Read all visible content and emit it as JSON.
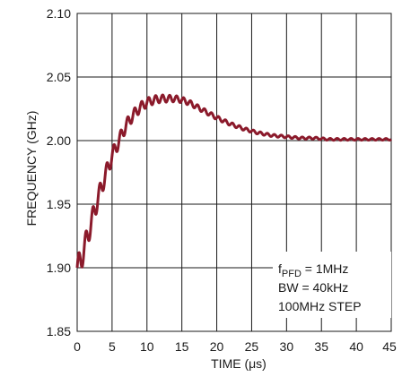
{
  "chart_data": {
    "type": "line",
    "xlabel": "TIME (μs)",
    "ylabel": "FREQUENCY (GHz)",
    "xlim": [
      0,
      45
    ],
    "ylim": [
      1.85,
      2.1
    ],
    "x_ticks": [
      "0",
      "5",
      "10",
      "15",
      "20",
      "25",
      "30",
      "35",
      "40",
      "45"
    ],
    "y_ticks": [
      "1.85",
      "1.90",
      "1.95",
      "2.00",
      "2.05",
      "2.10"
    ],
    "grid": true,
    "line_color": "#8b1a2b",
    "annotation": {
      "line1_main": "f",
      "line1_sub": "PFD",
      "line1_rest": " = 1MHz",
      "line2": "BW = 40kHz",
      "line3": "100MHz STEP"
    },
    "series": [
      {
        "x": [
          0,
          0.5,
          1,
          1.5,
          2,
          3,
          4,
          5,
          6,
          7,
          8,
          9,
          10,
          11,
          12,
          13,
          14,
          15,
          16,
          17,
          18,
          19,
          20,
          22,
          24,
          26,
          28,
          30,
          32,
          34,
          36,
          38,
          40,
          42,
          45
        ],
        "values": [
          1.9,
          1.905,
          1.915,
          1.925,
          1.935,
          1.955,
          1.972,
          1.988,
          2.0,
          2.012,
          2.02,
          2.026,
          2.03,
          2.032,
          2.033,
          2.033,
          2.033,
          2.032,
          2.03,
          2.027,
          2.024,
          2.021,
          2.018,
          2.013,
          2.009,
          2.006,
          2.004,
          2.003,
          2.002,
          2.002,
          2.001,
          2.001,
          2.001,
          2.001,
          2.001
        ]
      }
    ]
  }
}
